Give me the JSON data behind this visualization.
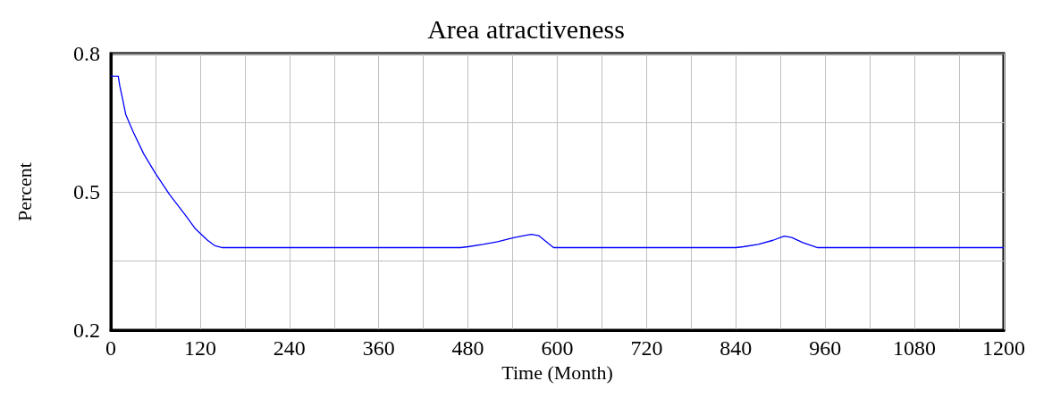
{
  "chart_data": {
    "type": "line",
    "title": "Area atractiveness",
    "xlabel": "Time (Month)",
    "ylabel": "Percent",
    "x": [
      0,
      10,
      12,
      16,
      20,
      30,
      44,
      60,
      79,
      100,
      114,
      130,
      140,
      150,
      200,
      300,
      400,
      470,
      480,
      500,
      520,
      540,
      555,
      565,
      575,
      585,
      595,
      700,
      800,
      840,
      850,
      870,
      890,
      905,
      915,
      930,
      950,
      1000,
      1100,
      1200
    ],
    "series": [
      {
        "color": "#0000ff",
        "values": [
          0.751,
          0.751,
          0.73,
          0.7,
          0.668,
          0.63,
          0.583,
          0.54,
          0.494,
          0.45,
          0.419,
          0.395,
          0.383,
          0.379,
          0.379,
          0.379,
          0.379,
          0.379,
          0.381,
          0.386,
          0.392,
          0.4,
          0.405,
          0.408,
          0.405,
          0.392,
          0.379,
          0.379,
          0.379,
          0.379,
          0.381,
          0.386,
          0.395,
          0.404,
          0.401,
          0.39,
          0.379,
          0.379,
          0.379,
          0.379
        ]
      }
    ],
    "xlim": [
      0,
      1200
    ],
    "xticks": [
      0,
      {
        "value": 60,
        "label": null
      },
      120,
      {
        "value": 180,
        "label": null
      },
      240,
      {
        "value": 300,
        "label": null
      },
      360,
      {
        "value": 420,
        "label": null
      },
      480,
      {
        "value": 540,
        "label": null
      },
      600,
      {
        "value": 660,
        "label": null
      },
      720,
      {
        "value": 780,
        "label": null
      },
      840,
      {
        "value": 900,
        "label": null
      },
      960,
      {
        "value": 1020,
        "label": null
      },
      1080,
      {
        "value": 1140,
        "label": null
      },
      1200
    ],
    "ylim": [
      0.2,
      0.8
    ],
    "yticks": [
      0.2,
      {
        "value": 0.35,
        "label": null
      },
      0.5,
      {
        "value": 0.65,
        "label": null
      },
      0.8
    ],
    "grid": true,
    "marker": "none",
    "line_style": "solid"
  }
}
